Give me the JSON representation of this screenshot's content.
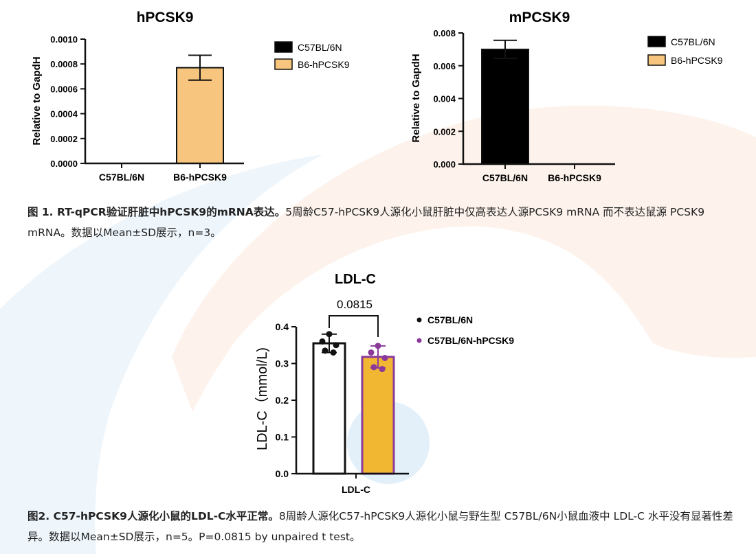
{
  "chart_data": [
    {
      "type": "bar",
      "title": "hPCSK9",
      "ylabel": "Relative to GapdH",
      "categories": [
        "C57BL/6N",
        "B6-hPCSK9"
      ],
      "values": [
        0,
        0.00077
      ],
      "errors": [
        0,
        0.0001
      ],
      "ylim": [
        0,
        0.001
      ],
      "yticks": [
        "0.0000",
        "0.0002",
        "0.0004",
        "0.0006",
        "0.0008",
        "0.0010"
      ],
      "legend": [
        "C57BL/6N",
        "B6-hPCSK9"
      ],
      "legend_position": "right",
      "colors": [
        "#000000",
        "#f7c57e"
      ]
    },
    {
      "type": "bar",
      "title": "mPCSK9",
      "ylabel": "Relative to GapdH",
      "categories": [
        "C57BL/6N",
        "B6-hPCSK9"
      ],
      "values": [
        0.007,
        0
      ],
      "errors": [
        0.00055,
        0
      ],
      "ylim": [
        0,
        0.008
      ],
      "yticks": [
        "0.000",
        "0.002",
        "0.004",
        "0.006",
        "0.008"
      ],
      "legend": [
        "C57BL/6N",
        "B6-hPCSK9"
      ],
      "legend_position": "right",
      "colors": [
        "#000000",
        "#f7c57e"
      ]
    },
    {
      "type": "bar",
      "title": "LDL-C",
      "ylabel": "LDL-C（mmol/L)",
      "xlabel": "LDL-C",
      "categories": [
        "C57BL/6N",
        "C57BL/6N-hPCSK9"
      ],
      "values": [
        0.355,
        0.318
      ],
      "errors": [
        0.025,
        0.03
      ],
      "points": [
        [
          0.38,
          0.36,
          0.35,
          0.335,
          0.33
        ],
        [
          0.348,
          0.33,
          0.315,
          0.29,
          0.285
        ]
      ],
      "p_value": "0.0815",
      "ylim": [
        0,
        0.4
      ],
      "yticks": [
        "0.0",
        "0.1",
        "0.2",
        "0.3",
        "0.4"
      ],
      "legend": [
        "C57BL/6N",
        "C57BL/6N-hPCSK9"
      ],
      "legend_position": "right",
      "colors": [
        "#ffffff",
        "#f1b733"
      ],
      "edge_colors": [
        "#111111",
        "#8b3a9a"
      ],
      "point_colors": [
        "#111111",
        "#8b3a9a"
      ]
    }
  ],
  "captions": {
    "fig1_label": "图 1. RT-qPCR验证肝脏中hPCSK9的mRNA表达。",
    "fig1_text": "5周龄C57-hPCSK9人源化小鼠肝脏中仅高表达人源PCSK9 mRNA 而不表达鼠源 PCSK9 mRNA。数据以Mean±SD展示，n=3。",
    "fig2_label": "图2. C57-hPCSK9人源化小鼠的LDL-C水平正常。",
    "fig2_text": "8周龄人源化C57-hPCSK9人源化小鼠与野生型 C57BL/6N小鼠血液中 LDL-C 水平没有显著性差异。数据以Mean±SD展示，n=5。P=0.0815 by unpaired t test。"
  },
  "decoration": {
    "light_blue": "#eef6fc",
    "light_orange": "#fdf3ec",
    "mid_blue": "#e3f0fa"
  }
}
